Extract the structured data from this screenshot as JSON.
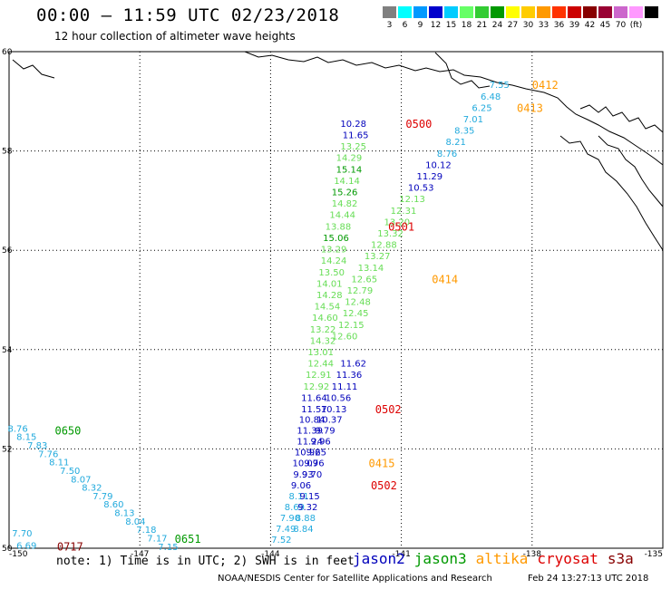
{
  "title": "00:00 – 11:59 UTC 02/23/2018",
  "subtitle": "12 hour collection of altimeter wave heights",
  "colorbar": {
    "colors": [
      "#808080",
      "#00ffff",
      "#0099ff",
      "#0000cc",
      "#00ccff",
      "#66ff66",
      "#33cc33",
      "#009900",
      "#ffff00",
      "#ffcc00",
      "#ff9900",
      "#ff3300",
      "#cc0000",
      "#880000",
      "#990033",
      "#cc66cc",
      "#ff99ff",
      "#000000"
    ],
    "labels": [
      "3",
      "6",
      "9",
      "12",
      "15",
      "18",
      "21",
      "24",
      "27",
      "30",
      "33",
      "36",
      "39",
      "42",
      "45",
      "70",
      "(ft)"
    ]
  },
  "axes": {
    "lat_labels": [
      "60",
      "58",
      "56",
      "54",
      "52",
      "50"
    ],
    "lon_labels": [
      "-150",
      "-147",
      "-144",
      "-141",
      "-138",
      "-135"
    ]
  },
  "series_colors": {
    "jason2": "#0000bb",
    "jason3": "#009900",
    "altika": "#ff9900",
    "cryosat": "#dd0000",
    "s3a": "#880000",
    "c_cyan": "#22aadd",
    "c_lgreen": "#66dd55",
    "c_dgreen": "#009900"
  },
  "observations": [
    {
      "v": "10.28",
      "c": "jason2",
      "lon": -142.1,
      "lat": 58.56
    },
    {
      "v": "11.65",
      "c": "jason2",
      "lon": -142.05,
      "lat": 58.33
    },
    {
      "v": "13.25",
      "c": "c_lgreen",
      "lon": -142.1,
      "lat": 58.1
    },
    {
      "v": "14.29",
      "c": "c_lgreen",
      "lon": -142.2,
      "lat": 57.87
    },
    {
      "v": "15.14",
      "c": "c_dgreen",
      "lon": -142.2,
      "lat": 57.64
    },
    {
      "v": "14.14",
      "c": "c_lgreen",
      "lon": -142.25,
      "lat": 57.41
    },
    {
      "v": "15.26",
      "c": "c_dgreen",
      "lon": -142.3,
      "lat": 57.18
    },
    {
      "v": "14.82",
      "c": "c_lgreen",
      "lon": -142.3,
      "lat": 56.95
    },
    {
      "v": "14.44",
      "c": "c_lgreen",
      "lon": -142.35,
      "lat": 56.72
    },
    {
      "v": "13.88",
      "c": "c_lgreen",
      "lon": -142.45,
      "lat": 56.49
    },
    {
      "v": "15.06",
      "c": "c_dgreen",
      "lon": -142.5,
      "lat": 56.26
    },
    {
      "v": "13.29",
      "c": "c_lgreen",
      "lon": -142.55,
      "lat": 56.03
    },
    {
      "v": "14.24",
      "c": "c_lgreen",
      "lon": -142.55,
      "lat": 55.8
    },
    {
      "v": "13.50",
      "c": "c_lgreen",
      "lon": -142.6,
      "lat": 55.57
    },
    {
      "v": "14.01",
      "c": "c_lgreen",
      "lon": -142.65,
      "lat": 55.34
    },
    {
      "v": "14.28",
      "c": "c_lgreen",
      "lon": -142.65,
      "lat": 55.11
    },
    {
      "v": "14.54",
      "c": "c_lgreen",
      "lon": -142.7,
      "lat": 54.88
    },
    {
      "v": "14.60",
      "c": "c_lgreen",
      "lon": -142.75,
      "lat": 54.65
    },
    {
      "v": "13.22",
      "c": "c_lgreen",
      "lon": -142.8,
      "lat": 54.42
    },
    {
      "v": "14.32",
      "c": "c_lgreen",
      "lon": -142.8,
      "lat": 54.19
    },
    {
      "v": "13.01",
      "c": "c_lgreen",
      "lon": -142.85,
      "lat": 53.96
    },
    {
      "v": "12.44",
      "c": "c_lgreen",
      "lon": -142.85,
      "lat": 53.73
    },
    {
      "v": "12.91",
      "c": "c_lgreen",
      "lon": -142.9,
      "lat": 53.5
    },
    {
      "v": "12.92",
      "c": "c_lgreen",
      "lon": -142.95,
      "lat": 53.27
    },
    {
      "v": "11.64",
      "c": "jason2",
      "lon": -143.0,
      "lat": 53.04
    },
    {
      "v": "11.57",
      "c": "jason2",
      "lon": -143.0,
      "lat": 52.81
    },
    {
      "v": "10.84",
      "c": "jason2",
      "lon": -143.05,
      "lat": 52.6
    },
    {
      "v": "11.39",
      "c": "jason2",
      "lon": -143.1,
      "lat": 52.38
    },
    {
      "v": "11.24",
      "c": "jason2",
      "lon": -143.1,
      "lat": 52.16
    },
    {
      "v": "10.96",
      "c": "jason2",
      "lon": -143.15,
      "lat": 51.94
    },
    {
      "v": "10.09",
      "c": "jason2",
      "lon": -143.2,
      "lat": 51.72
    },
    {
      "v": "9.93",
      "c": "jason2",
      "lon": -143.25,
      "lat": 51.5
    },
    {
      "v": "9.06",
      "c": "jason2",
      "lon": -143.3,
      "lat": 51.28
    },
    {
      "v": "8.11",
      "c": "c_cyan",
      "lon": -143.35,
      "lat": 51.06
    },
    {
      "v": "8.69",
      "c": "c_cyan",
      "lon": -143.45,
      "lat": 50.84
    },
    {
      "v": "7.90",
      "c": "c_cyan",
      "lon": -143.55,
      "lat": 50.62
    },
    {
      "v": "7.49",
      "c": "c_cyan",
      "lon": -143.65,
      "lat": 50.4
    },
    {
      "v": "7.52",
      "c": "c_cyan",
      "lon": -143.75,
      "lat": 50.18
    },
    {
      "v": "11.62",
      "c": "jason2",
      "lon": -142.1,
      "lat": 53.73
    },
    {
      "v": "11.36",
      "c": "jason2",
      "lon": -142.2,
      "lat": 53.5
    },
    {
      "v": "11.11",
      "c": "jason2",
      "lon": -142.3,
      "lat": 53.27
    },
    {
      "v": "10.56",
      "c": "jason2",
      "lon": -142.45,
      "lat": 53.04
    },
    {
      "v": "10.13",
      "c": "jason2",
      "lon": -142.55,
      "lat": 52.81
    },
    {
      "v": "10.37",
      "c": "jason2",
      "lon": -142.65,
      "lat": 52.6
    },
    {
      "v": "9.79",
      "c": "jason2",
      "lon": -142.75,
      "lat": 52.38
    },
    {
      "v": "9.96",
      "c": "jason2",
      "lon": -142.85,
      "lat": 52.16
    },
    {
      "v": "9.25",
      "c": "jason2",
      "lon": -142.95,
      "lat": 51.94
    },
    {
      "v": "9.76",
      "c": "jason2",
      "lon": -143.0,
      "lat": 51.72
    },
    {
      "v": "9.70",
      "c": "jason2",
      "lon": -143.05,
      "lat": 51.5
    },
    {
      "v": "9.15",
      "c": "jason2",
      "lon": -143.1,
      "lat": 51.06
    },
    {
      "v": "9.32",
      "c": "jason2",
      "lon": -143.15,
      "lat": 50.84
    },
    {
      "v": "8.88",
      "c": "c_cyan",
      "lon": -143.2,
      "lat": 50.62
    },
    {
      "v": "8.84",
      "c": "c_cyan",
      "lon": -143.25,
      "lat": 50.4
    },
    {
      "v": "7.55",
      "c": "c_cyan",
      "lon": -138.75,
      "lat": 59.34
    },
    {
      "v": "6.48",
      "c": "c_cyan",
      "lon": -138.95,
      "lat": 59.11
    },
    {
      "v": "6.25",
      "c": "c_cyan",
      "lon": -139.15,
      "lat": 58.88
    },
    {
      "v": "7.01",
      "c": "c_cyan",
      "lon": -139.35,
      "lat": 58.65
    },
    {
      "v": "8.35",
      "c": "c_cyan",
      "lon": -139.55,
      "lat": 58.42
    },
    {
      "v": "8.21",
      "c": "c_cyan",
      "lon": -139.75,
      "lat": 58.19
    },
    {
      "v": "8.76",
      "c": "c_cyan",
      "lon": -139.95,
      "lat": 57.96
    },
    {
      "v": "10.12",
      "c": "jason2",
      "lon": -140.15,
      "lat": 57.73
    },
    {
      "v": "11.29",
      "c": "jason2",
      "lon": -140.35,
      "lat": 57.5
    },
    {
      "v": "10.53",
      "c": "jason2",
      "lon": -140.55,
      "lat": 57.27
    },
    {
      "v": "12.13",
      "c": "c_lgreen",
      "lon": -140.75,
      "lat": 57.04
    },
    {
      "v": "12.31",
      "c": "c_lgreen",
      "lon": -140.95,
      "lat": 56.81
    },
    {
      "v": "13.20",
      "c": "c_lgreen",
      "lon": -141.1,
      "lat": 56.58
    },
    {
      "v": "13.32",
      "c": "c_lgreen",
      "lon": -141.25,
      "lat": 56.35
    },
    {
      "v": "12.88",
      "c": "c_lgreen",
      "lon": -141.4,
      "lat": 56.12
    },
    {
      "v": "13.27",
      "c": "c_lgreen",
      "lon": -141.55,
      "lat": 55.89
    },
    {
      "v": "13.14",
      "c": "c_lgreen",
      "lon": -141.7,
      "lat": 55.66
    },
    {
      "v": "12.65",
      "c": "c_lgreen",
      "lon": -141.85,
      "lat": 55.43
    },
    {
      "v": "12.79",
      "c": "c_lgreen",
      "lon": -141.95,
      "lat": 55.2
    },
    {
      "v": "12.48",
      "c": "c_lgreen",
      "lon": -142.0,
      "lat": 54.97
    },
    {
      "v": "12.45",
      "c": "c_lgreen",
      "lon": -142.05,
      "lat": 54.74
    },
    {
      "v": "12.15",
      "c": "c_lgreen",
      "lon": -142.15,
      "lat": 54.51
    },
    {
      "v": "12.60",
      "c": "c_lgreen",
      "lon": -142.3,
      "lat": 54.28
    },
    {
      "v": "8.76",
      "c": "c_cyan",
      "lon": -149.8,
      "lat": 52.42
    },
    {
      "v": "8.15",
      "c": "c_cyan",
      "lon": -149.6,
      "lat": 52.25
    },
    {
      "v": "7.83",
      "c": "c_cyan",
      "lon": -149.35,
      "lat": 52.08
    },
    {
      "v": "7.76",
      "c": "c_cyan",
      "lon": -149.1,
      "lat": 51.91
    },
    {
      "v": "8.11",
      "c": "c_cyan",
      "lon": -148.85,
      "lat": 51.74
    },
    {
      "v": "7.50",
      "c": "c_cyan",
      "lon": -148.6,
      "lat": 51.57
    },
    {
      "v": "8.07",
      "c": "c_cyan",
      "lon": -148.35,
      "lat": 51.4
    },
    {
      "v": "8.32",
      "c": "c_cyan",
      "lon": -148.1,
      "lat": 51.23
    },
    {
      "v": "7.79",
      "c": "c_cyan",
      "lon": -147.85,
      "lat": 51.06
    },
    {
      "v": "8.60",
      "c": "c_cyan",
      "lon": -147.6,
      "lat": 50.89
    },
    {
      "v": "8.13",
      "c": "c_cyan",
      "lon": -147.35,
      "lat": 50.72
    },
    {
      "v": "8.04",
      "c": "c_cyan",
      "lon": -147.1,
      "lat": 50.55
    },
    {
      "v": "7.18",
      "c": "c_cyan",
      "lon": -146.85,
      "lat": 50.38
    },
    {
      "v": "7.17",
      "c": "c_cyan",
      "lon": -146.6,
      "lat": 50.21
    },
    {
      "v": "7.15",
      "c": "c_cyan",
      "lon": -146.35,
      "lat": 50.04
    },
    {
      "v": "7.70",
      "c": "c_cyan",
      "lon": -149.7,
      "lat": 50.31
    },
    {
      "v": "6.69",
      "c": "c_cyan",
      "lon": -149.6,
      "lat": 50.06
    }
  ],
  "time_labels": [
    {
      "t": "0500",
      "c": "cryosat",
      "lon": -140.9,
      "lat": 58.56
    },
    {
      "t": "0501",
      "c": "cryosat",
      "lon": -141.3,
      "lat": 56.49
    },
    {
      "t": "0502",
      "c": "cryosat",
      "lon": -141.6,
      "lat": 52.81
    },
    {
      "t": "0502",
      "c": "cryosat",
      "lon": -141.7,
      "lat": 51.28
    },
    {
      "t": "0412",
      "c": "altika",
      "lon": -138.0,
      "lat": 59.34
    },
    {
      "t": "0413",
      "c": "altika",
      "lon": -138.35,
      "lat": 58.88
    },
    {
      "t": "0414",
      "c": "altika",
      "lon": -140.3,
      "lat": 55.43
    },
    {
      "t": "0415",
      "c": "altika",
      "lon": -141.75,
      "lat": 51.72
    },
    {
      "t": "0650",
      "c": "c_dgreen",
      "lon": -148.95,
      "lat": 52.38
    },
    {
      "t": "0651",
      "c": "c_dgreen",
      "lon": -146.2,
      "lat": 50.2
    },
    {
      "t": "0717",
      "c": "s3a",
      "lon": -148.9,
      "lat": 50.05
    }
  ],
  "note": "note: 1) Time is in UTC; 2) SWH is in feet",
  "satellites": [
    {
      "name": "jason2",
      "c": "jason2"
    },
    {
      "name": "jason3",
      "c": "jason3"
    },
    {
      "name": "altika",
      "c": "altika"
    },
    {
      "name": "cryosat",
      "c": "cryosat"
    },
    {
      "name": "s3a",
      "c": "s3a"
    }
  ],
  "footer": "NOAA/NESDIS Center for Satellite Applications and Research",
  "timestamp": "Feb 24 13:27:13 UTC 2018"
}
